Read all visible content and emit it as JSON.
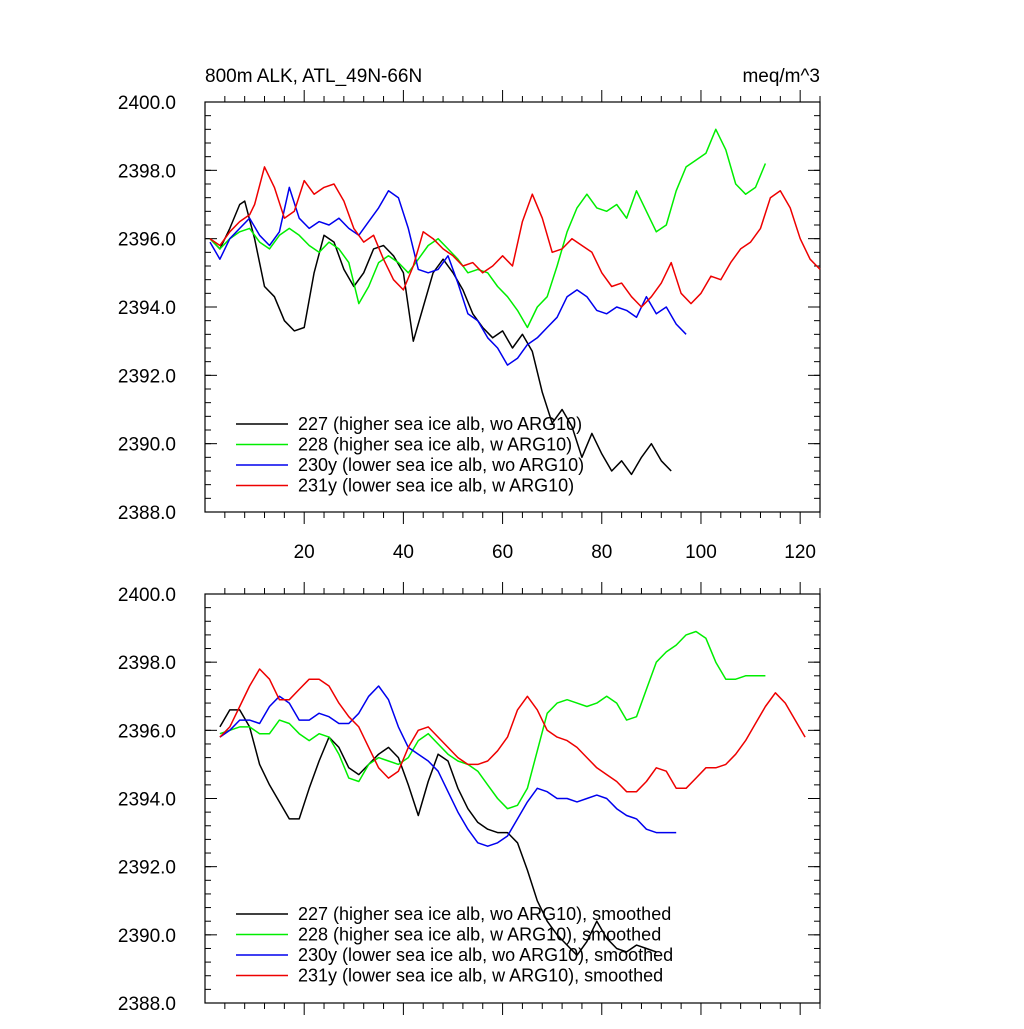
{
  "colors": {
    "227": "#000000",
    "228": "#00ee00",
    "230y": "#0000ee",
    "231y": "#ee0000"
  },
  "chart_data": [
    {
      "type": "line",
      "title": "800m ALK, ATL_49N-66N",
      "units": "meq/m^3",
      "xlim": [
        0,
        124
      ],
      "ylim": [
        2388.0,
        2400.0
      ],
      "y_ticks": [
        "2388.0",
        "2390.0",
        "2392.0",
        "2394.0",
        "2396.0",
        "2398.0",
        "2400.0"
      ],
      "x_ticks": [
        "20",
        "40",
        "60",
        "80",
        "100",
        "120"
      ],
      "series": [
        {
          "key": "227",
          "name": "227 (higher sea ice alb, wo ARG10)",
          "x": [
            1,
            3,
            5,
            7,
            8,
            10,
            12,
            14,
            16,
            18,
            20,
            22,
            24,
            26,
            28,
            30,
            32,
            34,
            36,
            38,
            40,
            42,
            44,
            46,
            48,
            50,
            52,
            54,
            56,
            58,
            60,
            62,
            64,
            66,
            68,
            70,
            72,
            74,
            76,
            78,
            80,
            82,
            84,
            86,
            88,
            90,
            92,
            94
          ],
          "y": [
            2396.0,
            2395.7,
            2396.3,
            2397.0,
            2397.1,
            2396.0,
            2394.6,
            2394.3,
            2393.6,
            2393.3,
            2393.4,
            2395.0,
            2396.1,
            2395.9,
            2395.1,
            2394.6,
            2395.0,
            2395.7,
            2395.8,
            2395.5,
            2395.0,
            2393.0,
            2394.0,
            2395.0,
            2395.4,
            2395.0,
            2394.5,
            2393.8,
            2393.4,
            2393.1,
            2393.3,
            2392.8,
            2393.2,
            2392.7,
            2391.5,
            2390.6,
            2391.0,
            2390.5,
            2389.6,
            2390.3,
            2389.7,
            2389.2,
            2389.5,
            2389.1,
            2389.6,
            2390.0,
            2389.5,
            2389.2
          ]
        },
        {
          "key": "228",
          "name": "228 (higher sea ice alb, w ARG10)",
          "x": [
            1,
            3,
            5,
            7,
            9,
            11,
            13,
            15,
            17,
            19,
            21,
            23,
            25,
            27,
            29,
            31,
            33,
            35,
            37,
            39,
            41,
            43,
            45,
            47,
            49,
            51,
            53,
            55,
            57,
            59,
            61,
            63,
            65,
            67,
            69,
            71,
            73,
            75,
            77,
            79,
            81,
            83,
            85,
            87,
            89,
            91,
            93,
            95,
            97,
            99,
            101,
            103,
            105,
            107,
            109,
            111,
            113
          ],
          "y": [
            2396.0,
            2395.7,
            2396.0,
            2396.2,
            2396.3,
            2395.9,
            2395.7,
            2396.1,
            2396.3,
            2396.1,
            2395.8,
            2395.6,
            2395.9,
            2395.7,
            2395.3,
            2394.1,
            2394.6,
            2395.3,
            2395.5,
            2395.3,
            2395.0,
            2395.4,
            2395.8,
            2396.0,
            2395.7,
            2395.4,
            2395.0,
            2395.1,
            2395.0,
            2394.6,
            2394.3,
            2393.9,
            2393.4,
            2394.0,
            2394.3,
            2395.2,
            2396.2,
            2396.9,
            2397.3,
            2396.9,
            2396.8,
            2397.0,
            2396.6,
            2397.4,
            2396.8,
            2396.2,
            2396.4,
            2397.4,
            2398.1,
            2398.3,
            2398.5,
            2399.2,
            2398.6,
            2397.6,
            2397.3,
            2397.5,
            2398.2
          ]
        },
        {
          "key": "230y",
          "name": "230y (lower sea ice alb, wo ARG10)",
          "x": [
            1,
            3,
            5,
            7,
            9,
            11,
            13,
            15,
            17,
            19,
            21,
            23,
            25,
            27,
            29,
            31,
            33,
            35,
            37,
            39,
            41,
            43,
            45,
            47,
            49,
            51,
            53,
            55,
            57,
            59,
            61,
            63,
            65,
            67,
            69,
            71,
            73,
            75,
            77,
            79,
            81,
            83,
            85,
            87,
            89,
            91,
            93,
            95,
            97
          ],
          "y": [
            2395.9,
            2395.4,
            2396.0,
            2396.3,
            2396.6,
            2396.1,
            2395.8,
            2396.2,
            2397.5,
            2396.6,
            2396.3,
            2396.5,
            2396.4,
            2396.6,
            2396.3,
            2396.1,
            2396.5,
            2396.9,
            2397.4,
            2397.2,
            2396.3,
            2395.1,
            2395.0,
            2395.1,
            2395.5,
            2394.7,
            2393.8,
            2393.6,
            2393.1,
            2392.8,
            2392.3,
            2392.5,
            2392.9,
            2393.1,
            2393.4,
            2393.7,
            2394.3,
            2394.5,
            2394.3,
            2393.9,
            2393.8,
            2394.0,
            2393.9,
            2393.7,
            2394.3,
            2393.8,
            2394.0,
            2393.5,
            2393.2
          ]
        },
        {
          "key": "231y",
          "name": "231y (lower sea ice alb, w ARG10)",
          "x": [
            1,
            3,
            5,
            7,
            9,
            10,
            12,
            14,
            16,
            18,
            20,
            22,
            24,
            26,
            28,
            30,
            32,
            34,
            36,
            38,
            40,
            42,
            44,
            46,
            48,
            50,
            52,
            54,
            56,
            58,
            60,
            62,
            64,
            66,
            68,
            70,
            72,
            74,
            76,
            78,
            80,
            82,
            84,
            86,
            88,
            90,
            92,
            94,
            96,
            98,
            100,
            102,
            104,
            106,
            108,
            110,
            112,
            114,
            116,
            118,
            120,
            122,
            124
          ],
          "y": [
            2396.0,
            2395.8,
            2396.2,
            2396.5,
            2396.7,
            2397.0,
            2398.1,
            2397.5,
            2396.6,
            2396.8,
            2397.7,
            2397.3,
            2397.5,
            2397.6,
            2397.1,
            2396.3,
            2395.9,
            2396.1,
            2395.4,
            2394.8,
            2394.5,
            2395.2,
            2396.2,
            2396.0,
            2395.7,
            2395.5,
            2395.2,
            2395.3,
            2395.0,
            2395.2,
            2395.5,
            2395.2,
            2396.5,
            2397.3,
            2396.6,
            2395.6,
            2395.7,
            2396.0,
            2395.8,
            2395.6,
            2395.0,
            2394.6,
            2394.7,
            2394.3,
            2394.0,
            2394.3,
            2394.7,
            2395.3,
            2394.4,
            2394.1,
            2394.4,
            2394.9,
            2394.8,
            2395.3,
            2395.7,
            2395.9,
            2396.3,
            2397.2,
            2397.4,
            2396.9,
            2396.0,
            2395.4,
            2395.1
          ]
        }
      ]
    },
    {
      "type": "line",
      "xlim": [
        0,
        124
      ],
      "ylim": [
        2388.0,
        2400.0
      ],
      "y_ticks": [
        "2388.0",
        "2390.0",
        "2392.0",
        "2394.0",
        "2396.0",
        "2398.0",
        "2400.0"
      ],
      "x_ticks": [
        20,
        40,
        60,
        80,
        100,
        120
      ],
      "series": [
        {
          "key": "227",
          "name": "227 (higher sea ice alb, wo ARG10), smoothed",
          "x": [
            3,
            5,
            7,
            9,
            11,
            13,
            15,
            17,
            19,
            21,
            23,
            25,
            27,
            29,
            31,
            33,
            35,
            37,
            39,
            41,
            43,
            45,
            47,
            49,
            51,
            53,
            55,
            57,
            59,
            61,
            63,
            65,
            67,
            69,
            71,
            73,
            75,
            77,
            79,
            81,
            83,
            85,
            87,
            89,
            91
          ],
          "y": [
            2396.1,
            2396.6,
            2396.6,
            2396.1,
            2395.0,
            2394.4,
            2393.9,
            2393.4,
            2393.4,
            2394.3,
            2395.1,
            2395.8,
            2395.5,
            2394.9,
            2394.7,
            2395.0,
            2395.3,
            2395.5,
            2395.2,
            2394.4,
            2393.5,
            2394.5,
            2395.3,
            2395.1,
            2394.3,
            2393.7,
            2393.3,
            2393.1,
            2393.0,
            2393.0,
            2392.7,
            2391.9,
            2391.0,
            2390.4,
            2390.0,
            2389.7,
            2389.4,
            2389.8,
            2390.4,
            2389.9,
            2389.6,
            2389.5,
            2389.7,
            2389.6,
            2389.5
          ]
        },
        {
          "key": "228",
          "name": "228 (higher sea ice alb, w ARG10), smoothed",
          "x": [
            3,
            5,
            7,
            9,
            11,
            13,
            15,
            17,
            19,
            21,
            23,
            25,
            27,
            29,
            31,
            33,
            35,
            37,
            39,
            41,
            43,
            45,
            47,
            49,
            51,
            53,
            55,
            57,
            59,
            61,
            63,
            65,
            67,
            69,
            71,
            73,
            75,
            77,
            79,
            81,
            83,
            85,
            87,
            89,
            91,
            93,
            95,
            97,
            99,
            101,
            103,
            105,
            107,
            109,
            111,
            113
          ],
          "y": [
            2395.9,
            2396.0,
            2396.1,
            2396.1,
            2395.9,
            2395.9,
            2396.3,
            2396.2,
            2395.9,
            2395.7,
            2395.9,
            2395.8,
            2395.3,
            2394.6,
            2394.5,
            2395.0,
            2395.2,
            2395.1,
            2395.0,
            2395.2,
            2395.7,
            2395.9,
            2395.6,
            2395.3,
            2395.1,
            2395.0,
            2394.8,
            2394.4,
            2394.0,
            2393.7,
            2393.8,
            2394.3,
            2395.4,
            2396.5,
            2396.8,
            2396.9,
            2396.8,
            2396.7,
            2396.8,
            2397.0,
            2396.8,
            2396.3,
            2396.4,
            2397.2,
            2398.0,
            2398.3,
            2398.5,
            2398.8,
            2398.9,
            2398.7,
            2398.0,
            2397.5,
            2397.5,
            2397.6,
            2397.6,
            2397.6
          ]
        },
        {
          "key": "230y",
          "name": "230y (lower sea ice alb, wo ARG10), smoothed",
          "x": [
            3,
            5,
            7,
            9,
            11,
            13,
            15,
            17,
            19,
            21,
            23,
            25,
            27,
            29,
            31,
            33,
            35,
            37,
            39,
            41,
            43,
            45,
            47,
            49,
            51,
            53,
            55,
            57,
            59,
            61,
            63,
            65,
            67,
            69,
            71,
            73,
            75,
            77,
            79,
            81,
            83,
            85,
            87,
            89,
            91,
            93,
            95
          ],
          "y": [
            2395.8,
            2396.0,
            2396.3,
            2396.3,
            2396.2,
            2396.7,
            2397.0,
            2396.8,
            2396.3,
            2396.3,
            2396.5,
            2396.4,
            2396.2,
            2396.2,
            2396.5,
            2397.0,
            2397.3,
            2396.9,
            2396.1,
            2395.5,
            2395.3,
            2395.1,
            2394.8,
            2394.2,
            2393.6,
            2393.1,
            2392.7,
            2392.6,
            2392.7,
            2392.9,
            2393.4,
            2393.9,
            2394.3,
            2394.2,
            2394.0,
            2394.0,
            2393.9,
            2394.0,
            2394.1,
            2394.0,
            2393.7,
            2393.5,
            2393.4,
            2393.1,
            2393.0,
            2393.0,
            2393.0
          ]
        },
        {
          "key": "231y",
          "name": "231y (lower sea ice alb, w ARG10), smoothed",
          "x": [
            3,
            5,
            7,
            9,
            11,
            13,
            15,
            17,
            19,
            21,
            23,
            25,
            27,
            29,
            31,
            33,
            35,
            37,
            39,
            41,
            43,
            45,
            47,
            49,
            51,
            53,
            55,
            57,
            59,
            61,
            63,
            65,
            67,
            69,
            71,
            73,
            75,
            77,
            79,
            81,
            83,
            85,
            87,
            89,
            91,
            93,
            95,
            97,
            99,
            101,
            103,
            105,
            107,
            109,
            111,
            113,
            115,
            117,
            119,
            121
          ],
          "y": [
            2395.8,
            2396.1,
            2396.7,
            2397.3,
            2397.8,
            2397.5,
            2396.9,
            2396.9,
            2397.2,
            2397.5,
            2397.5,
            2397.3,
            2396.8,
            2396.4,
            2396.1,
            2395.5,
            2394.9,
            2394.6,
            2394.8,
            2395.5,
            2396.0,
            2396.1,
            2395.8,
            2395.5,
            2395.2,
            2395.0,
            2395.0,
            2395.1,
            2395.4,
            2395.8,
            2396.6,
            2397.0,
            2396.6,
            2396.0,
            2395.8,
            2395.7,
            2395.5,
            2395.2,
            2394.9,
            2394.7,
            2394.5,
            2394.2,
            2394.2,
            2394.5,
            2394.9,
            2394.8,
            2394.3,
            2394.3,
            2394.6,
            2394.9,
            2394.9,
            2395.0,
            2395.3,
            2395.7,
            2396.2,
            2396.7,
            2397.1,
            2396.8,
            2396.3,
            2395.8
          ]
        }
      ]
    }
  ]
}
